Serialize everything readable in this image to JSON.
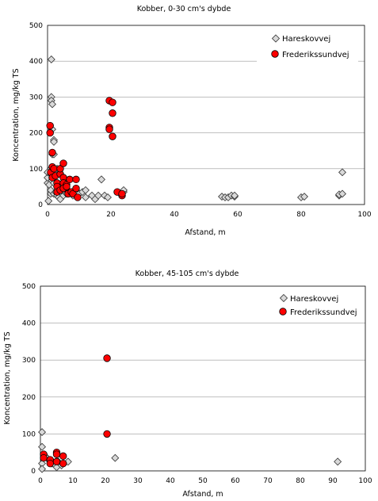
{
  "chart_data": [
    {
      "type": "scatter",
      "title": "Kobber, 0-30 cm's dybde",
      "xlabel": "Afstand, m",
      "ylabel": "Koncentration, mg/kg TS",
      "xlim": [
        0,
        100
      ],
      "ylim": [
        0,
        500
      ],
      "xticks": [
        "0",
        "20",
        "40",
        "60",
        "80",
        "100"
      ],
      "yticks": [
        "0",
        "100",
        "200",
        "300",
        "400",
        "500"
      ],
      "grid": "horizontal",
      "legend": "top-right",
      "series": [
        {
          "name": "Hareskovvej",
          "marker": "diamond",
          "color": "#d9d9d9",
          "points": [
            [
              0,
              60
            ],
            [
              0,
              75
            ],
            [
              0,
              90
            ],
            [
              0.3,
              10
            ],
            [
              0.5,
              55
            ],
            [
              1,
              100
            ],
            [
              1,
              85
            ],
            [
              1,
              30
            ],
            [
              1,
              40
            ],
            [
              1.2,
              405
            ],
            [
              1.2,
              300
            ],
            [
              1.2,
              290
            ],
            [
              1.5,
              280
            ],
            [
              1.5,
              210
            ],
            [
              1.5,
              140
            ],
            [
              2,
              180
            ],
            [
              2,
              175
            ],
            [
              2,
              140
            ],
            [
              2,
              60
            ],
            [
              2,
              30
            ],
            [
              2.5,
              35
            ],
            [
              3,
              25
            ],
            [
              3,
              100
            ],
            [
              3.5,
              20
            ],
            [
              4,
              15
            ],
            [
              4,
              50
            ],
            [
              5,
              25
            ],
            [
              5,
              40
            ],
            [
              6,
              30
            ],
            [
              7,
              35
            ],
            [
              8,
              25
            ],
            [
              9,
              40
            ],
            [
              10,
              30
            ],
            [
              11,
              35
            ],
            [
              12,
              20
            ],
            [
              12,
              40
            ],
            [
              14,
              25
            ],
            [
              15,
              15
            ],
            [
              16,
              25
            ],
            [
              17,
              70
            ],
            [
              18,
              25
            ],
            [
              19,
              20
            ],
            [
              23,
              30
            ],
            [
              24,
              35
            ],
            [
              24,
              40
            ],
            [
              55,
              22
            ],
            [
              56,
              20
            ],
            [
              57,
              20
            ],
            [
              58,
              25
            ],
            [
              59,
              22
            ],
            [
              59,
              25
            ],
            [
              80,
              20
            ],
            [
              81,
              22
            ],
            [
              92,
              25
            ],
            [
              92,
              28
            ],
            [
              93,
              30
            ],
            [
              93,
              90
            ]
          ]
        },
        {
          "name": "Frederikssundvej",
          "marker": "circle",
          "color": "#ff0000",
          "points": [
            [
              0.8,
              220
            ],
            [
              0.8,
              200
            ],
            [
              1,
              90
            ],
            [
              1.5,
              145
            ],
            [
              1.5,
              105
            ],
            [
              1.5,
              75
            ],
            [
              2,
              100
            ],
            [
              2.5,
              80
            ],
            [
              3,
              60
            ],
            [
              3,
              50
            ],
            [
              3,
              35
            ],
            [
              4,
              40
            ],
            [
              4,
              85
            ],
            [
              4,
              100
            ],
            [
              5,
              115
            ],
            [
              5,
              75
            ],
            [
              5,
              60
            ],
            [
              5,
              45
            ],
            [
              6,
              55
            ],
            [
              6,
              50
            ],
            [
              6.5,
              30
            ],
            [
              7,
              70
            ],
            [
              7.5,
              35
            ],
            [
              8,
              30
            ],
            [
              9,
              45
            ],
            [
              9,
              70
            ],
            [
              9.5,
              20
            ],
            [
              19.5,
              290
            ],
            [
              20.5,
              285
            ],
            [
              19.5,
              215
            ],
            [
              19.5,
              210
            ],
            [
              20.5,
              255
            ],
            [
              20.5,
              190
            ],
            [
              22,
              35
            ],
            [
              23.5,
              25
            ],
            [
              23.5,
              30
            ]
          ]
        }
      ]
    },
    {
      "type": "scatter",
      "title": "Kobber, 45-105 cm's dybde",
      "xlabel": "Afstand, m",
      "ylabel": "Koncentration, mg/kg TS",
      "xlim": [
        0,
        100
      ],
      "ylim": [
        0,
        500
      ],
      "xticks": [
        "0",
        "10",
        "20",
        "30",
        "40",
        "50",
        "60",
        "70",
        "80",
        "90",
        "100"
      ],
      "yticks": [
        "0",
        "100",
        "200",
        "300",
        "400",
        "500"
      ],
      "grid": "horizontal",
      "legend": "top-right",
      "series": [
        {
          "name": "Hareskovvej",
          "marker": "diamond",
          "color": "#d9d9d9",
          "points": [
            [
              0.5,
              105
            ],
            [
              0.5,
              65
            ],
            [
              0.5,
              20
            ],
            [
              0.5,
              5
            ],
            [
              1.5,
              40
            ],
            [
              2,
              35
            ],
            [
              3,
              25
            ],
            [
              3.5,
              20
            ],
            [
              4.5,
              15
            ],
            [
              5,
              10
            ],
            [
              5.5,
              25
            ],
            [
              6.5,
              15
            ],
            [
              8.5,
              25
            ],
            [
              23,
              35
            ],
            [
              91.5,
              25
            ]
          ]
        },
        {
          "name": "Frederikssundvej",
          "marker": "circle",
          "color": "#ff0000",
          "points": [
            [
              1,
              45
            ],
            [
              1,
              35
            ],
            [
              3,
              30
            ],
            [
              3,
              20
            ],
            [
              5,
              50
            ],
            [
              5,
              45
            ],
            [
              5,
              25
            ],
            [
              7,
              40
            ],
            [
              7,
              20
            ],
            [
              20.5,
              305
            ],
            [
              20.5,
              100
            ]
          ]
        }
      ]
    }
  ]
}
